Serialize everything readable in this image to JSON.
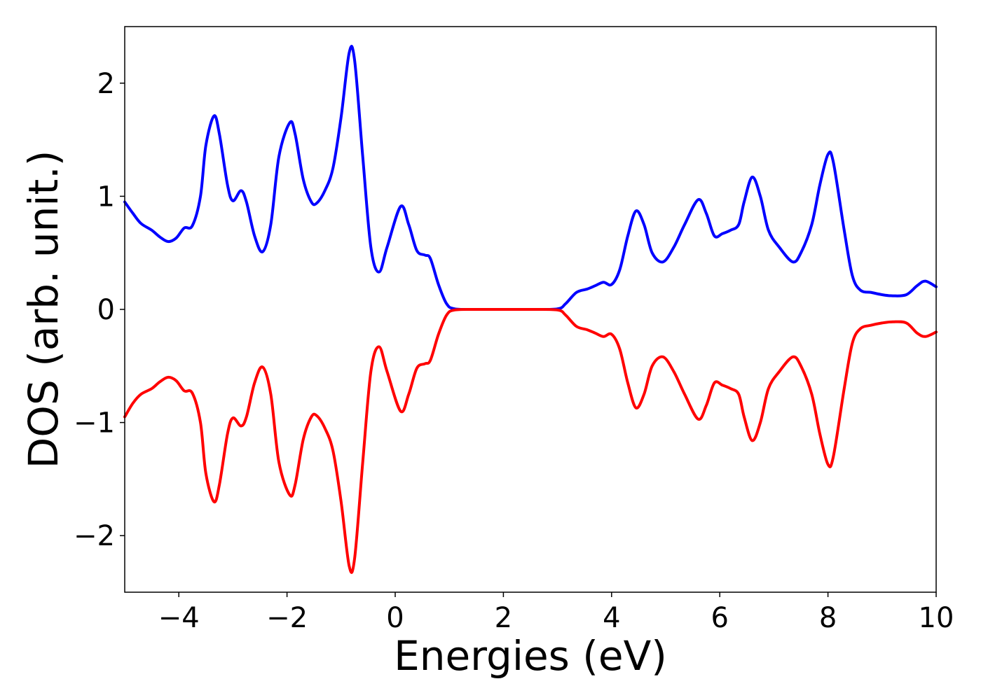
{
  "chart_data": {
    "type": "line",
    "title": "",
    "xlabel": "Energies (eV)",
    "ylabel": "DOS (arb. unit.)",
    "xlim": [
      -5,
      10
    ],
    "ylim": [
      -2.5,
      2.5
    ],
    "xticks": [
      -4,
      -2,
      0,
      2,
      4,
      6,
      8,
      10
    ],
    "xtick_labels": [
      "−4",
      "−2",
      "0",
      "2",
      "4",
      "6",
      "8",
      "10"
    ],
    "yticks": [
      -2,
      -1,
      0,
      1,
      2
    ],
    "ytick_labels": [
      "−2",
      "−1",
      "0",
      "1",
      "2"
    ],
    "grid": false,
    "legend": "none",
    "series": [
      {
        "color": "#0000ff",
        "points": [
          [
            -5.0,
            0.95
          ],
          [
            -4.85,
            0.85
          ],
          [
            -4.7,
            0.76
          ],
          [
            -4.5,
            0.7
          ],
          [
            -4.35,
            0.64
          ],
          [
            -4.2,
            0.6
          ],
          [
            -4.05,
            0.63
          ],
          [
            -3.9,
            0.72
          ],
          [
            -3.75,
            0.74
          ],
          [
            -3.6,
            1.0
          ],
          [
            -3.5,
            1.45
          ],
          [
            -3.35,
            1.71
          ],
          [
            -3.25,
            1.55
          ],
          [
            -3.1,
            1.1
          ],
          [
            -3.0,
            0.96
          ],
          [
            -2.85,
            1.05
          ],
          [
            -2.75,
            0.95
          ],
          [
            -2.6,
            0.65
          ],
          [
            -2.45,
            0.51
          ],
          [
            -2.3,
            0.75
          ],
          [
            -2.15,
            1.35
          ],
          [
            -1.95,
            1.65
          ],
          [
            -1.85,
            1.55
          ],
          [
            -1.7,
            1.15
          ],
          [
            -1.55,
            0.95
          ],
          [
            -1.45,
            0.94
          ],
          [
            -1.3,
            1.05
          ],
          [
            -1.15,
            1.25
          ],
          [
            -1.0,
            1.7
          ],
          [
            -0.85,
            2.27
          ],
          [
            -0.75,
            2.2
          ],
          [
            -0.6,
            1.35
          ],
          [
            -0.45,
            0.55
          ],
          [
            -0.3,
            0.33
          ],
          [
            -0.15,
            0.55
          ],
          [
            0.1,
            0.91
          ],
          [
            0.25,
            0.75
          ],
          [
            0.4,
            0.52
          ],
          [
            0.55,
            0.48
          ],
          [
            0.65,
            0.45
          ],
          [
            0.8,
            0.22
          ],
          [
            0.95,
            0.05
          ],
          [
            1.1,
            0.005
          ],
          [
            1.5,
            0.0
          ],
          [
            2.0,
            0.0
          ],
          [
            2.5,
            0.0
          ],
          [
            3.0,
            0.005
          ],
          [
            3.15,
            0.05
          ],
          [
            3.35,
            0.15
          ],
          [
            3.55,
            0.18
          ],
          [
            3.7,
            0.21
          ],
          [
            3.85,
            0.24
          ],
          [
            4.0,
            0.22
          ],
          [
            4.15,
            0.35
          ],
          [
            4.3,
            0.65
          ],
          [
            4.45,
            0.87
          ],
          [
            4.6,
            0.75
          ],
          [
            4.75,
            0.5
          ],
          [
            4.95,
            0.42
          ],
          [
            5.15,
            0.55
          ],
          [
            5.35,
            0.75
          ],
          [
            5.6,
            0.97
          ],
          [
            5.75,
            0.85
          ],
          [
            5.9,
            0.65
          ],
          [
            6.05,
            0.67
          ],
          [
            6.2,
            0.7
          ],
          [
            6.35,
            0.75
          ],
          [
            6.45,
            0.95
          ],
          [
            6.6,
            1.17
          ],
          [
            6.75,
            1.0
          ],
          [
            6.9,
            0.7
          ],
          [
            7.1,
            0.55
          ],
          [
            7.35,
            0.42
          ],
          [
            7.5,
            0.5
          ],
          [
            7.7,
            0.75
          ],
          [
            7.85,
            1.1
          ],
          [
            8.0,
            1.37
          ],
          [
            8.1,
            1.3
          ],
          [
            8.3,
            0.7
          ],
          [
            8.45,
            0.3
          ],
          [
            8.6,
            0.17
          ],
          [
            8.8,
            0.15
          ],
          [
            9.0,
            0.13
          ],
          [
            9.2,
            0.12
          ],
          [
            9.45,
            0.13
          ],
          [
            9.65,
            0.21
          ],
          [
            9.8,
            0.25
          ],
          [
            10.0,
            0.2
          ]
        ]
      },
      {
        "color": "#ff0000",
        "points": [
          [
            -5.0,
            -0.95
          ],
          [
            -4.85,
            -0.83
          ],
          [
            -4.7,
            -0.75
          ],
          [
            -4.5,
            -0.7
          ],
          [
            -4.35,
            -0.64
          ],
          [
            -4.2,
            -0.6
          ],
          [
            -4.05,
            -0.63
          ],
          [
            -3.9,
            -0.72
          ],
          [
            -3.75,
            -0.74
          ],
          [
            -3.6,
            -1.0
          ],
          [
            -3.5,
            -1.45
          ],
          [
            -3.35,
            -1.7
          ],
          [
            -3.25,
            -1.55
          ],
          [
            -3.1,
            -1.1
          ],
          [
            -3.0,
            -0.96
          ],
          [
            -2.85,
            -1.03
          ],
          [
            -2.75,
            -0.95
          ],
          [
            -2.6,
            -0.65
          ],
          [
            -2.45,
            -0.51
          ],
          [
            -2.3,
            -0.75
          ],
          [
            -2.15,
            -1.35
          ],
          [
            -1.95,
            -1.64
          ],
          [
            -1.85,
            -1.55
          ],
          [
            -1.7,
            -1.15
          ],
          [
            -1.55,
            -0.95
          ],
          [
            -1.45,
            -0.94
          ],
          [
            -1.3,
            -1.05
          ],
          [
            -1.15,
            -1.25
          ],
          [
            -1.0,
            -1.7
          ],
          [
            -0.85,
            -2.27
          ],
          [
            -0.75,
            -2.2
          ],
          [
            -0.6,
            -1.35
          ],
          [
            -0.45,
            -0.55
          ],
          [
            -0.3,
            -0.33
          ],
          [
            -0.15,
            -0.55
          ],
          [
            0.1,
            -0.9
          ],
          [
            0.25,
            -0.75
          ],
          [
            0.4,
            -0.52
          ],
          [
            0.55,
            -0.48
          ],
          [
            0.65,
            -0.45
          ],
          [
            0.8,
            -0.22
          ],
          [
            0.95,
            -0.05
          ],
          [
            1.1,
            -0.005
          ],
          [
            1.5,
            0.0
          ],
          [
            2.0,
            0.0
          ],
          [
            2.5,
            0.0
          ],
          [
            3.0,
            -0.005
          ],
          [
            3.15,
            -0.05
          ],
          [
            3.35,
            -0.15
          ],
          [
            3.55,
            -0.18
          ],
          [
            3.7,
            -0.21
          ],
          [
            3.85,
            -0.24
          ],
          [
            4.0,
            -0.22
          ],
          [
            4.15,
            -0.35
          ],
          [
            4.3,
            -0.65
          ],
          [
            4.45,
            -0.87
          ],
          [
            4.6,
            -0.75
          ],
          [
            4.75,
            -0.5
          ],
          [
            4.95,
            -0.42
          ],
          [
            5.15,
            -0.55
          ],
          [
            5.35,
            -0.75
          ],
          [
            5.6,
            -0.97
          ],
          [
            5.75,
            -0.85
          ],
          [
            5.9,
            -0.65
          ],
          [
            6.05,
            -0.67
          ],
          [
            6.2,
            -0.7
          ],
          [
            6.35,
            -0.75
          ],
          [
            6.45,
            -0.95
          ],
          [
            6.6,
            -1.16
          ],
          [
            6.75,
            -1.0
          ],
          [
            6.9,
            -0.7
          ],
          [
            7.1,
            -0.55
          ],
          [
            7.35,
            -0.42
          ],
          [
            7.5,
            -0.5
          ],
          [
            7.7,
            -0.75
          ],
          [
            7.85,
            -1.1
          ],
          [
            8.0,
            -1.37
          ],
          [
            8.1,
            -1.3
          ],
          [
            8.3,
            -0.7
          ],
          [
            8.45,
            -0.3
          ],
          [
            8.6,
            -0.17
          ],
          [
            8.8,
            -0.14
          ],
          [
            9.0,
            -0.12
          ],
          [
            9.2,
            -0.11
          ],
          [
            9.45,
            -0.12
          ],
          [
            9.65,
            -0.21
          ],
          [
            9.8,
            -0.24
          ],
          [
            10.0,
            -0.2
          ]
        ]
      }
    ]
  }
}
